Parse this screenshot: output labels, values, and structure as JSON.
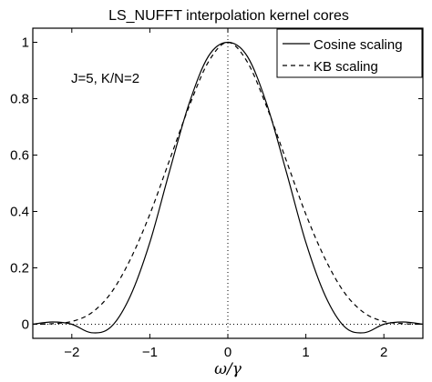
{
  "chart_data": {
    "type": "line",
    "title": "LS_NUFFT interpolation kernel cores",
    "xlabel": "ω/γ",
    "ylabel": "",
    "xlim": [
      -2.5,
      2.5
    ],
    "ylim": [
      -0.05,
      1.05
    ],
    "xticks": [
      -2,
      -1,
      0,
      1,
      2
    ],
    "xtick_labels": [
      "−2",
      "−1",
      "0",
      "1",
      "2"
    ],
    "yticks": [
      0,
      0.2,
      0.4,
      0.6,
      0.8,
      1
    ],
    "ytick_labels": [
      "0",
      "0.2",
      "0.4",
      "0.6",
      "0.8",
      "1"
    ],
    "grid": false,
    "legend_position": "top-right",
    "annotation": "J=5, K/N=2",
    "reference_lines": {
      "horizontal_y": 0,
      "vertical_x": 0,
      "style": "dotted"
    },
    "x": [
      -2.5,
      -2.25,
      -2.0,
      -1.75,
      -1.5,
      -1.25,
      -1.0,
      -0.75,
      -0.5,
      -0.25,
      0.0,
      0.25,
      0.5,
      0.75,
      1.0,
      1.25,
      1.5,
      1.75,
      2.0,
      2.25,
      2.5
    ],
    "series": [
      {
        "name": "Cosine scaling",
        "line_style": "solid",
        "values": [
          0.0,
          0.008,
          0.0,
          -0.03,
          -0.01,
          0.1,
          0.29,
          0.54,
          0.78,
          0.95,
          1.0,
          0.95,
          0.78,
          0.54,
          0.29,
          0.1,
          -0.01,
          -0.03,
          0.0,
          0.008,
          0.0
        ]
      },
      {
        "name": "KB scaling",
        "line_style": "dashed",
        "values": [
          0.0,
          0.002,
          0.01,
          0.04,
          0.11,
          0.23,
          0.39,
          0.58,
          0.77,
          0.93,
          1.0,
          0.93,
          0.77,
          0.58,
          0.39,
          0.23,
          0.11,
          0.04,
          0.01,
          0.002,
          0.0
        ]
      }
    ]
  }
}
